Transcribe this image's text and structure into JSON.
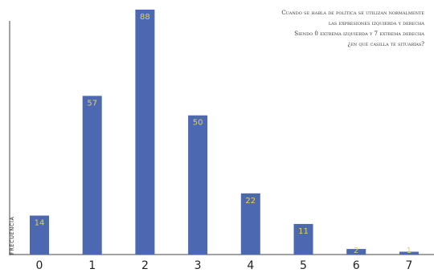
{
  "chart_data": {
    "type": "bar",
    "title_lines": [
      "Cuando se habla de política se utilizan normalmente",
      "las expresiones izquierda y derecha",
      "Siendo 0 extrema izquierda y 7 extrema derecha",
      "¿en qué casilla te situarías?"
    ],
    "xlabel": "",
    "ylabel": "FRECUENCIA",
    "categories": [
      "0",
      "1",
      "2",
      "3",
      "4",
      "5",
      "6",
      "7"
    ],
    "values": [
      14,
      57,
      88,
      50,
      22,
      11,
      2,
      1
    ],
    "ylim": [
      0,
      88
    ],
    "grid": false,
    "bar_color": "#4b68b0",
    "label_color": "#e4d25a"
  }
}
